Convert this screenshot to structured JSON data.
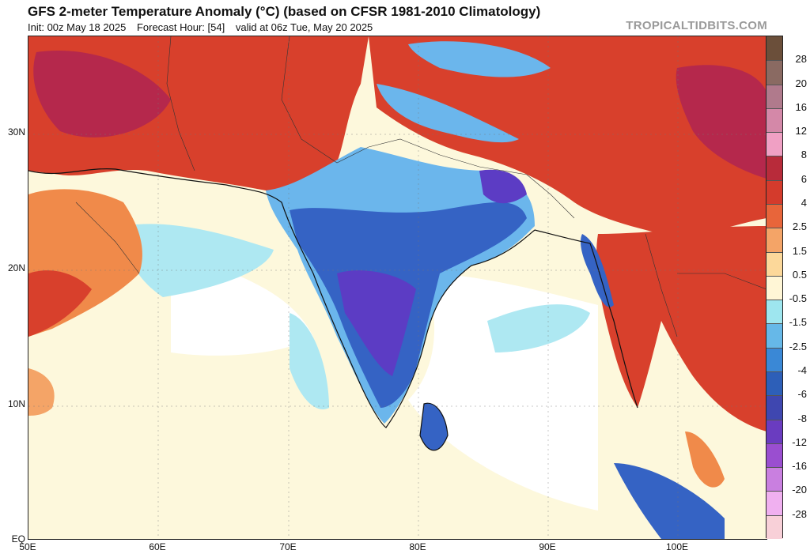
{
  "header": {
    "title": "GFS 2-meter Temperature Anomaly (°C) (based on CFSR 1981-2010 Climatology)",
    "init": "Init: 00z May 18 2025",
    "forecast_hour": "Forecast Hour: [54]",
    "valid": "valid at 06z Tue, May 20 2025",
    "brand": "TROPICALTIDBITS.COM"
  },
  "axes": {
    "lat_labels": [
      "30N",
      "20N",
      "10N",
      "EQ"
    ],
    "lon_labels": [
      "50E",
      "60E",
      "70E",
      "80E",
      "90E",
      "100E"
    ]
  },
  "colorbar": {
    "labels": [
      "28",
      "20",
      "16",
      "12",
      "8",
      "6",
      "4",
      "2.5",
      "1.5",
      "0.5",
      "-0.5",
      "-1.5",
      "-2.5",
      "-4",
      "-6",
      "-8",
      "-12",
      "-16",
      "-20",
      "-28"
    ],
    "colors": [
      "#6b4f3a",
      "#8a6a62",
      "#b07a8c",
      "#d488a8",
      "#f0a0c4",
      "#b82b3a",
      "#d43b2c",
      "#e8653a",
      "#f4a467",
      "#fcd89a",
      "#fff6d6",
      "#9ee6ef",
      "#66b8e8",
      "#3a88d6",
      "#2d5fb8",
      "#3f47b0",
      "#6a3cc0",
      "#9a4ed0",
      "#c97fe0",
      "#f0b0f0",
      "#f8d0d8"
    ]
  },
  "map_colors": {
    "ocean": "#fdf8dc",
    "ocean_neutral": "#ffffff",
    "ocean_cool": "#aee8f2",
    "hot": "#d8402c",
    "very_hot": "#b5284c",
    "warm": "#f08a4a",
    "cool": "#6bb6ec",
    "cold": "#3563c4",
    "very_cold": "#5c3cc4"
  }
}
